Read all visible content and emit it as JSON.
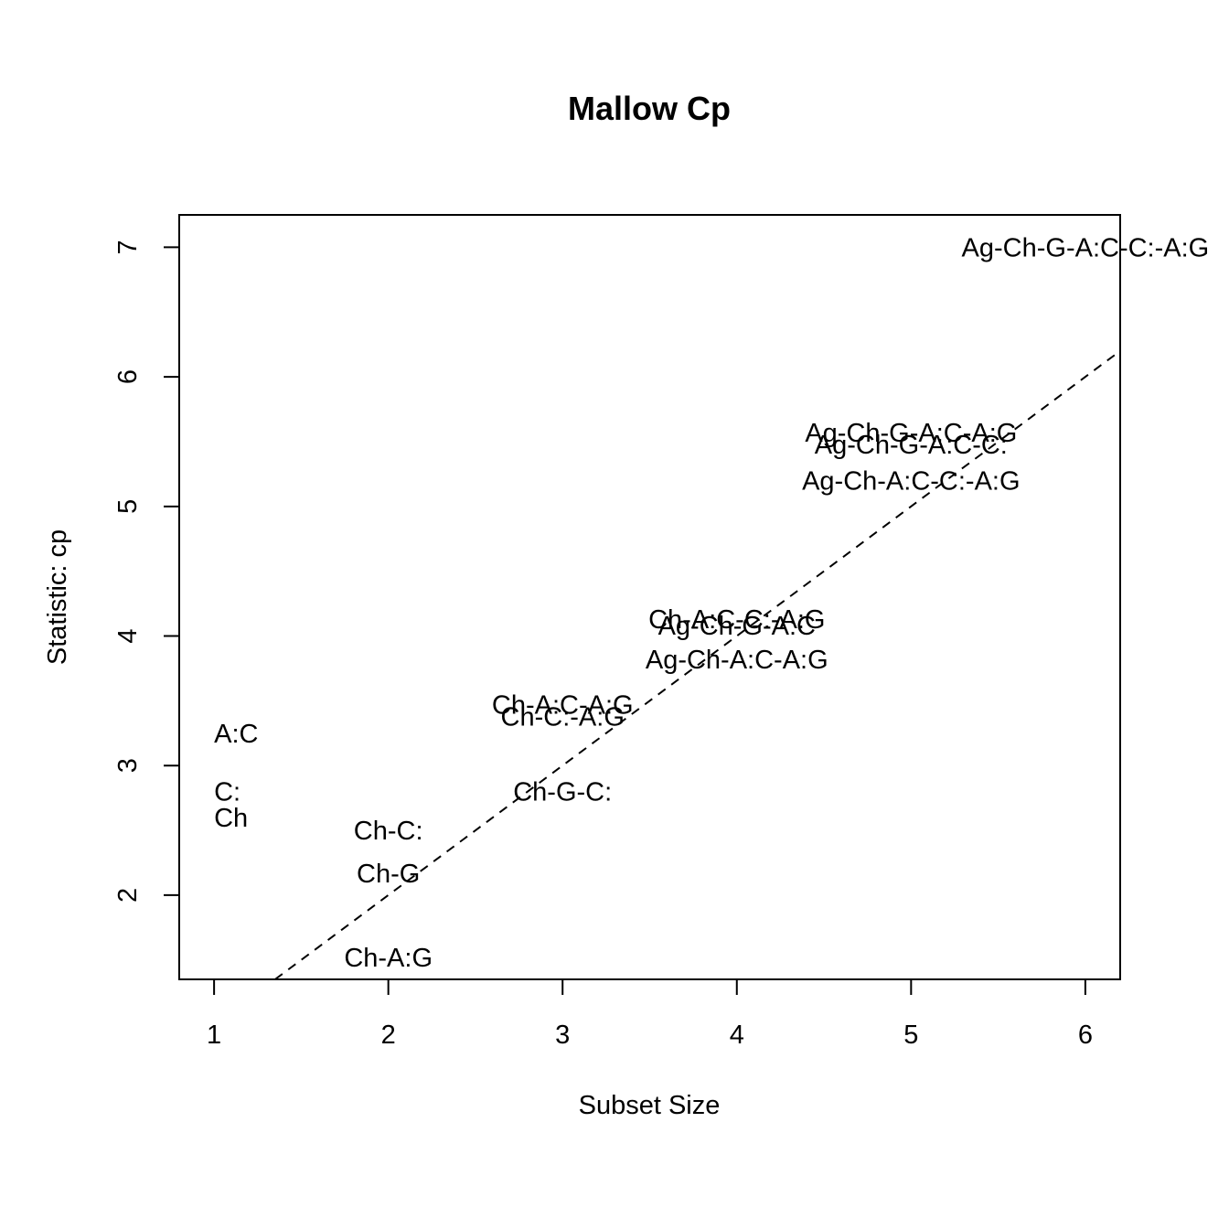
{
  "chart_data": {
    "type": "scatter",
    "title": "Mallow Cp",
    "xlabel": "Subset Size",
    "ylabel": "Statistic: cp",
    "xlim": [
      0.8,
      6.2
    ],
    "ylim": [
      1.35,
      7.25
    ],
    "x_ticks": [
      1,
      2,
      3,
      4,
      5,
      6
    ],
    "y_ticks": [
      2,
      3,
      4,
      5,
      6,
      7
    ],
    "grid": false,
    "reference_line": {
      "intercept": 0,
      "slope": 1,
      "style": "dashed"
    },
    "points": [
      {
        "x": 1,
        "y": 3.25,
        "label": "A:C"
      },
      {
        "x": 1,
        "y": 2.8,
        "label": "C:"
      },
      {
        "x": 1,
        "y": 2.6,
        "label": "Ch"
      },
      {
        "x": 2,
        "y": 2.5,
        "label": "Ch-C:"
      },
      {
        "x": 2,
        "y": 2.17,
        "label": "Ch-G"
      },
      {
        "x": 2,
        "y": 1.52,
        "label": "Ch-A:G"
      },
      {
        "x": 3,
        "y": 3.47,
        "label": "Ch-A:C-A:G"
      },
      {
        "x": 3,
        "y": 3.38,
        "label": "Ch-C:-A:G"
      },
      {
        "x": 3,
        "y": 2.8,
        "label": "Ch-G-C:"
      },
      {
        "x": 4,
        "y": 4.13,
        "label": "Ch-A:C-C:-A:G"
      },
      {
        "x": 4,
        "y": 4.08,
        "label": "Ag-Ch-G-A:C"
      },
      {
        "x": 4,
        "y": 3.82,
        "label": "Ag-Ch-A:C-A:G"
      },
      {
        "x": 5,
        "y": 5.57,
        "label": "Ag-Ch-G-A:C-A:G"
      },
      {
        "x": 5,
        "y": 5.48,
        "label": "Ag-Ch-G-A:C-C:"
      },
      {
        "x": 5,
        "y": 5.2,
        "label": "Ag-Ch-A:C-C:-A:G"
      },
      {
        "x": 6,
        "y": 7.0,
        "label": "Ag-Ch-G-A:C-C:-A:G"
      }
    ]
  }
}
